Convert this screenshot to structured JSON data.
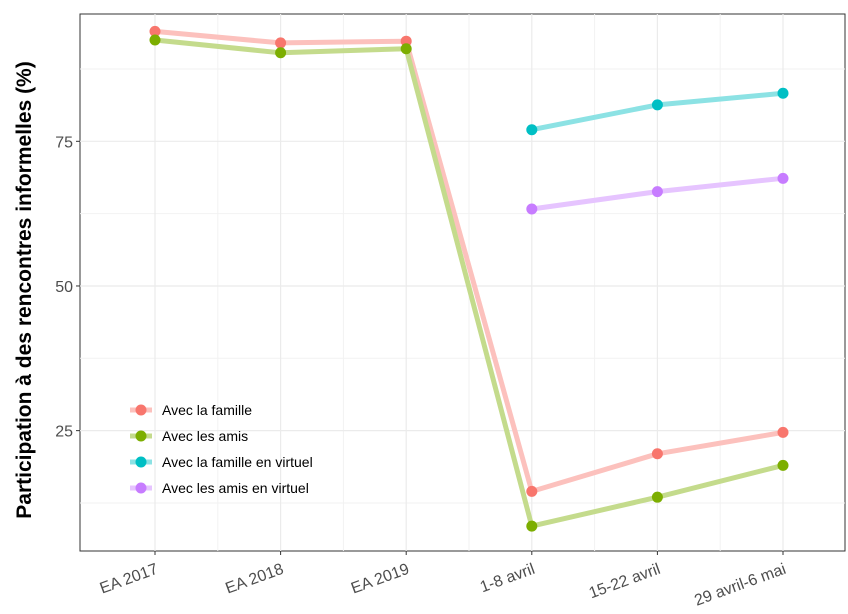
{
  "chart_data": {
    "type": "line",
    "title": "",
    "xlabel": "",
    "ylabel": "Participation à des rencontres informelles (%)",
    "categories": [
      "EA 2017",
      "EA 2018",
      "EA 2019",
      "1-8 avril",
      "15-22 avril",
      "29 avril-6 mai"
    ],
    "y_ticks": [
      25,
      50,
      75
    ],
    "ylim": [
      4.2,
      97
    ],
    "grid": true,
    "legend_position": "bottom-left",
    "series": [
      {
        "name": "Avec la famille",
        "color": "#F8766D",
        "values": [
          94.0,
          92.0,
          92.3,
          14.5,
          21.0,
          24.7
        ]
      },
      {
        "name": "Avec les amis",
        "color": "#7CAE00",
        "values": [
          92.5,
          90.3,
          91.0,
          8.5,
          13.5,
          19.0
        ]
      },
      {
        "name": "Avec la famille en virtuel",
        "color": "#00BFC4",
        "values": [
          null,
          null,
          null,
          77.0,
          81.3,
          83.3
        ]
      },
      {
        "name": "Avec les amis en virtuel",
        "color": "#C77CFF",
        "values": [
          null,
          null,
          null,
          63.3,
          66.3,
          68.6
        ]
      }
    ]
  }
}
